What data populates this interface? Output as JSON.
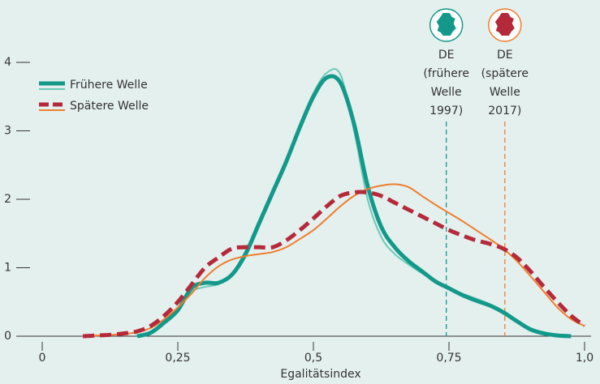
{
  "chart_data": {
    "type": "line",
    "xlabel": "Egalitätsindex",
    "x": [
      0.075,
      0.1,
      0.125,
      0.15,
      0.175,
      0.2,
      0.225,
      0.25,
      0.275,
      0.3,
      0.325,
      0.35,
      0.375,
      0.4,
      0.425,
      0.45,
      0.475,
      0.5,
      0.525,
      0.55,
      0.575,
      0.6,
      0.625,
      0.65,
      0.675,
      0.7,
      0.725,
      0.75,
      0.775,
      0.8,
      0.825,
      0.85,
      0.875,
      0.9,
      0.925,
      0.95,
      0.975,
      1.0
    ],
    "series": [
      {
        "name": "Frühere Welle",
        "color": "#13998a",
        "fit_color": "#6cc9b7",
        "values": [
          null,
          null,
          null,
          null,
          0,
          0.05,
          0.2,
          0.38,
          0.7,
          0.78,
          0.78,
          0.9,
          1.2,
          1.65,
          2.1,
          2.55,
          3.05,
          3.5,
          3.78,
          3.7,
          3.1,
          2.2,
          1.6,
          1.3,
          1.1,
          0.95,
          0.8,
          0.7,
          0.6,
          0.52,
          0.45,
          0.35,
          0.22,
          0.1,
          0.04,
          0.01,
          0,
          null
        ],
        "fit_values": [
          null,
          null,
          null,
          null,
          0,
          0.06,
          0.22,
          0.42,
          0.65,
          0.72,
          0.76,
          0.92,
          1.25,
          1.7,
          2.15,
          2.6,
          3.1,
          3.55,
          3.85,
          3.82,
          3.0,
          2.0,
          1.45,
          1.2,
          1.05,
          0.92,
          0.8,
          0.7,
          0.62,
          0.55,
          0.47,
          0.37,
          0.24,
          0.12,
          0.05,
          0.01,
          0,
          null
        ]
      },
      {
        "name": "Spätere Welle",
        "color": "#b52a3a",
        "fit_color": "#f07d2d",
        "dashed": true,
        "values": [
          0,
          0.01,
          0.02,
          0.04,
          0.07,
          0.15,
          0.3,
          0.5,
          0.75,
          1.0,
          1.15,
          1.28,
          1.3,
          1.3,
          1.3,
          1.4,
          1.55,
          1.72,
          1.9,
          2.05,
          2.1,
          2.1,
          2.05,
          1.95,
          1.85,
          1.75,
          1.65,
          1.55,
          1.47,
          1.4,
          1.35,
          1.28,
          1.15,
          0.95,
          0.72,
          0.5,
          0.3,
          0.15
        ],
        "fit_values": [
          0,
          0.01,
          0.02,
          0.03,
          0.06,
          0.12,
          0.25,
          0.42,
          0.62,
          0.85,
          1.02,
          1.12,
          1.17,
          1.2,
          1.23,
          1.3,
          1.42,
          1.55,
          1.72,
          1.9,
          2.05,
          2.15,
          2.2,
          2.22,
          2.18,
          2.05,
          1.92,
          1.8,
          1.68,
          1.55,
          1.42,
          1.28,
          1.1,
          0.88,
          0.65,
          0.42,
          0.25,
          0.15
        ]
      }
    ],
    "xlim": [
      0,
      1.0
    ],
    "xticks": [
      {
        "value": 0,
        "label": "0"
      },
      {
        "value": 0.25,
        "label": "0,25"
      },
      {
        "value": 0.5,
        "label": "0,5"
      },
      {
        "value": 0.75,
        "label": "0,75"
      },
      {
        "value": 1.0,
        "label": "1,0"
      }
    ],
    "ylim": [
      0,
      4
    ],
    "yticks": [
      0,
      1,
      2,
      3,
      4
    ],
    "legend": "upper left",
    "markers": [
      {
        "x": 0.745,
        "color": "#13998a",
        "label_lines": [
          "DE",
          "(frühere",
          "Welle",
          "1997)"
        ]
      },
      {
        "x": 0.853,
        "color": "#f07d2d",
        "icon_color": "#b52a3a",
        "label_lines": [
          "DE",
          "(spätere",
          "Welle",
          "2017)"
        ]
      }
    ]
  }
}
